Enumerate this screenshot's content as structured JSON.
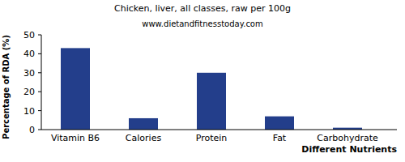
{
  "chart_data": {
    "type": "bar",
    "title": "Chicken, liver, all classes, raw per 100g",
    "subtitle": "www.dietandfitnesstoday.com",
    "x_label": "Different Nutrients",
    "y_label": "Percentage of RDA (%)",
    "categories": [
      "Vitamin B6",
      "Calories",
      "Protein",
      "Fat",
      "Carbohydrate"
    ],
    "values": [
      43,
      6,
      30,
      7,
      1
    ],
    "color": "#233e8b",
    "ylim": [
      0,
      50
    ],
    "yticks": [
      0,
      10,
      20,
      30,
      40,
      50
    ],
    "grid": false
  }
}
